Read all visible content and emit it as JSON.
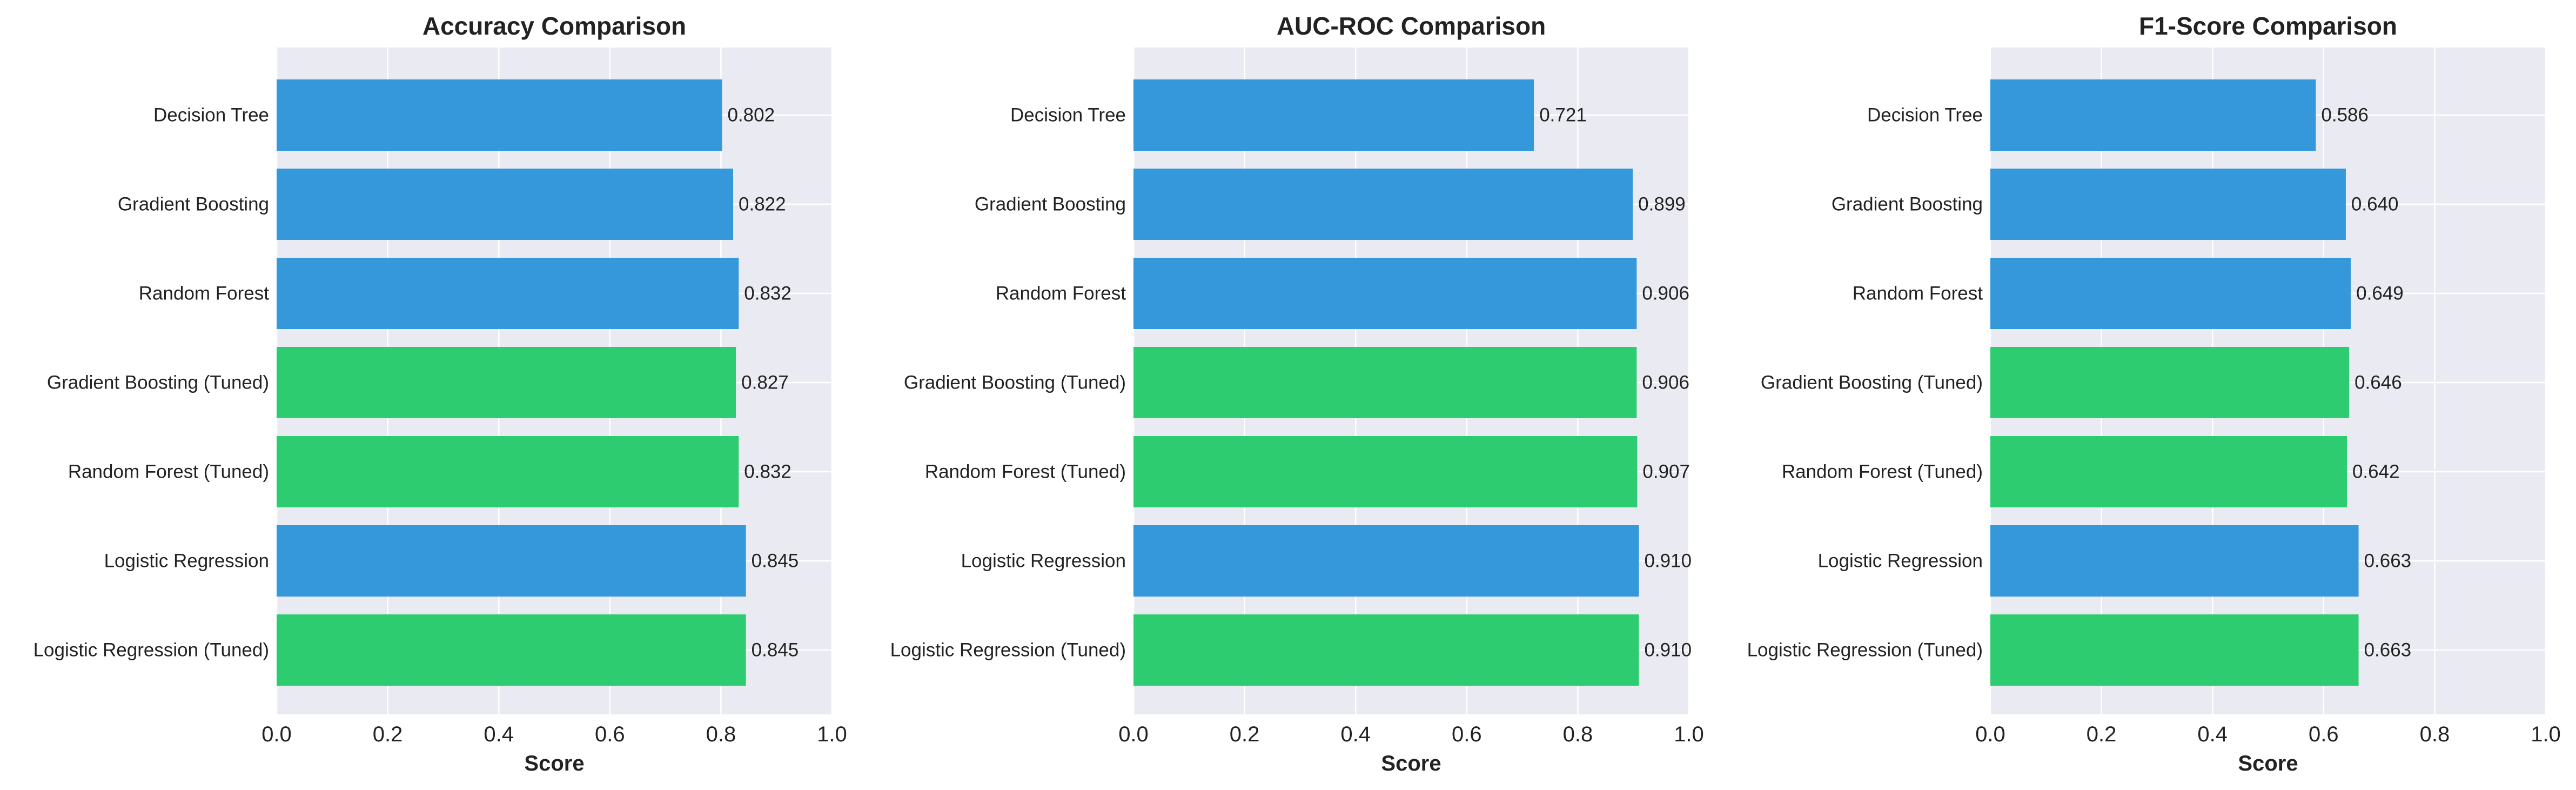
{
  "colors": {
    "base": "#3498db",
    "tuned": "#2ecc71",
    "plot_bg": "#eaeaf2",
    "grid": "#ffffff",
    "text": "#222222"
  },
  "chart_data": [
    {
      "type": "bar",
      "orientation": "horizontal",
      "title": "Accuracy Comparison",
      "xlabel": "Score",
      "ylabel": "",
      "xlim": [
        0,
        1.0
      ],
      "xticks": [
        "0.0",
        "0.2",
        "0.4",
        "0.6",
        "0.8",
        "1.0"
      ],
      "grid": true,
      "categories": [
        "Decision Tree",
        "Gradient Boosting",
        "Random Forest",
        "Gradient Boosting (Tuned)",
        "Random Forest (Tuned)",
        "Logistic Regression",
        "Logistic Regression (Tuned)"
      ],
      "values": [
        0.802,
        0.822,
        0.832,
        0.827,
        0.832,
        0.845,
        0.845
      ],
      "labels": [
        "0.802",
        "0.822",
        "0.832",
        "0.827",
        "0.832",
        "0.845",
        "0.845"
      ],
      "tuned": [
        false,
        false,
        false,
        true,
        true,
        false,
        true
      ]
    },
    {
      "type": "bar",
      "orientation": "horizontal",
      "title": "AUC-ROC Comparison",
      "xlabel": "Score",
      "ylabel": "",
      "xlim": [
        0,
        1.0
      ],
      "xticks": [
        "0.0",
        "0.2",
        "0.4",
        "0.6",
        "0.8",
        "1.0"
      ],
      "grid": true,
      "categories": [
        "Decision Tree",
        "Gradient Boosting",
        "Random Forest",
        "Gradient Boosting (Tuned)",
        "Random Forest (Tuned)",
        "Logistic Regression",
        "Logistic Regression (Tuned)"
      ],
      "values": [
        0.721,
        0.899,
        0.906,
        0.906,
        0.907,
        0.91,
        0.91
      ],
      "labels": [
        "0.721",
        "0.899",
        "0.906",
        "0.906",
        "0.907",
        "0.910",
        "0.910"
      ],
      "tuned": [
        false,
        false,
        false,
        true,
        true,
        false,
        true
      ]
    },
    {
      "type": "bar",
      "orientation": "horizontal",
      "title": "F1-Score Comparison",
      "xlabel": "Score",
      "ylabel": "",
      "xlim": [
        0,
        1.0
      ],
      "xticks": [
        "0.0",
        "0.2",
        "0.4",
        "0.6",
        "0.8",
        "1.0"
      ],
      "grid": true,
      "categories": [
        "Decision Tree",
        "Gradient Boosting",
        "Random Forest",
        "Gradient Boosting (Tuned)",
        "Random Forest (Tuned)",
        "Logistic Regression",
        "Logistic Regression (Tuned)"
      ],
      "values": [
        0.586,
        0.64,
        0.649,
        0.646,
        0.642,
        0.663,
        0.663
      ],
      "labels": [
        "0.586",
        "0.640",
        "0.649",
        "0.646",
        "0.642",
        "0.663",
        "0.663"
      ],
      "tuned": [
        false,
        false,
        false,
        true,
        true,
        false,
        true
      ]
    }
  ]
}
